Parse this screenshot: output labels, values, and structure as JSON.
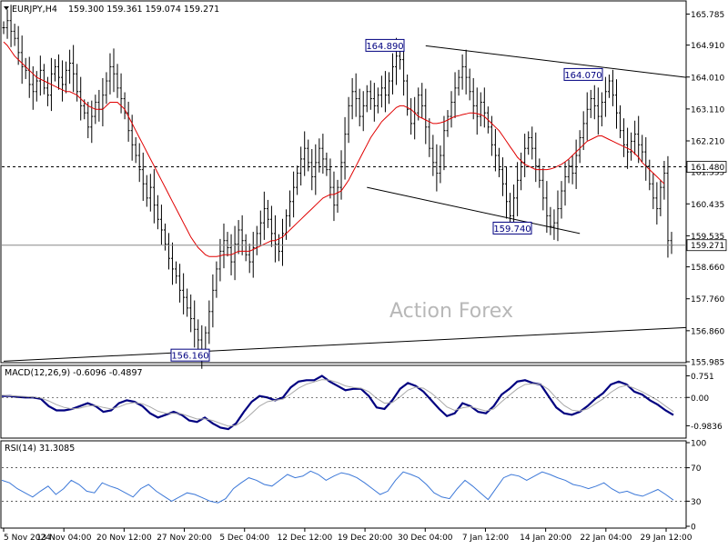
{
  "header": {
    "symbol": "EURJPY,H4",
    "ohlc": "159.300 159.361 159.074 159.271",
    "watermark": "Action Forex"
  },
  "chart_data": [
    {
      "type": "candlestick",
      "name": "EURJPY,H4",
      "x_ticks": [
        "5 Nov 2024",
        "13 Nov 04:00",
        "20 Nov 12:00",
        "27 Nov 20:00",
        "5 Dec 04:00",
        "12 Dec 12:00",
        "19 Dec 20:00",
        "30 Dec 04:00",
        "7 Jan 12:00",
        "14 Jan 20:00",
        "22 Jan 04:00",
        "29 Jan 12:00"
      ],
      "y_ticks": [
        165.785,
        164.91,
        164.01,
        163.11,
        162.21,
        161.335,
        160.435,
        159.535,
        158.66,
        157.76,
        156.86,
        155.985
      ],
      "ylim": [
        155.985,
        166.13
      ],
      "current_price": 159.271,
      "price_level_label": 161.48,
      "swing_labels": [
        {
          "text": "164.890",
          "value": 164.89
        },
        {
          "text": "164.070",
          "value": 164.07
        },
        {
          "text": "159.740",
          "value": 159.74
        },
        {
          "text": "156.160",
          "value": 156.16
        }
      ],
      "close_series": [
        165.4,
        165.6,
        165.3,
        165.1,
        164.7,
        164.3,
        164.2,
        163.8,
        163.6,
        163.9,
        164.2,
        163.7,
        163.5,
        164.1,
        164.3,
        164.0,
        163.8,
        164.2,
        164.4,
        164.1,
        163.6,
        163.2,
        163.0,
        162.6,
        162.9,
        163.3,
        163.1,
        163.5,
        163.9,
        164.3,
        164.1,
        163.7,
        163.4,
        163.0,
        162.5,
        162.1,
        161.8,
        161.4,
        161.0,
        160.6,
        160.9,
        160.4,
        160.0,
        159.7,
        159.3,
        158.9,
        158.6,
        158.4,
        158.0,
        157.8,
        157.5,
        157.2,
        156.9,
        156.6,
        156.2,
        156.8,
        157.4,
        158.0,
        158.6,
        159.1,
        159.4,
        159.2,
        158.8,
        159.3,
        159.7,
        159.4,
        159.0,
        158.8,
        159.2,
        159.6,
        159.9,
        160.3,
        160.0,
        159.6,
        159.3,
        159.1,
        159.6,
        160.1,
        160.5,
        160.9,
        161.3,
        161.7,
        162.0,
        161.6,
        161.2,
        161.6,
        162.0,
        161.7,
        161.4,
        160.9,
        160.4,
        160.9,
        161.6,
        162.4,
        163.2,
        163.6,
        163.4,
        162.9,
        163.2,
        163.6,
        163.4,
        163.2,
        163.5,
        163.7,
        163.5,
        163.9,
        164.3,
        164.6,
        164.5,
        163.9,
        163.1,
        162.7,
        163.0,
        163.5,
        163.2,
        162.6,
        162.0,
        161.6,
        161.3,
        161.8,
        162.5,
        162.9,
        163.3,
        163.7,
        164.0,
        164.3,
        164.0,
        163.6,
        163.2,
        162.9,
        163.3,
        163.0,
        162.6,
        162.1,
        161.8,
        161.4,
        161.0,
        160.5,
        160.1,
        160.6,
        161.1,
        161.6,
        162.0,
        162.3,
        162.0,
        161.5,
        161.1,
        160.6,
        160.1,
        159.8,
        159.9,
        160.3,
        160.8,
        161.2,
        161.5,
        161.3,
        161.8,
        162.3,
        162.7,
        163.1,
        163.4,
        163.2,
        162.9,
        163.3,
        163.6,
        163.9,
        163.5,
        163.0,
        162.5,
        162.1,
        161.9,
        162.2,
        162.4,
        162.1,
        161.9,
        161.5,
        161.0,
        160.6,
        160.3,
        160.9,
        161.3,
        159.4,
        159.27
      ],
      "ma_series": [
        165.0,
        164.9,
        164.75,
        164.6,
        164.5,
        164.4,
        164.3,
        164.2,
        164.1,
        164.0,
        163.95,
        163.9,
        163.85,
        163.8,
        163.75,
        163.7,
        163.65,
        163.6,
        163.6,
        163.55,
        163.5,
        163.4,
        163.3,
        163.2,
        163.15,
        163.1,
        163.1,
        163.1,
        163.2,
        163.3,
        163.3,
        163.3,
        163.2,
        163.1,
        162.9,
        162.7,
        162.5,
        162.3,
        162.1,
        161.9,
        161.7,
        161.5,
        161.3,
        161.1,
        160.9,
        160.7,
        160.5,
        160.3,
        160.1,
        159.9,
        159.7,
        159.5,
        159.35,
        159.2,
        159.1,
        159.0,
        158.95,
        158.95,
        158.95,
        158.97,
        159.0,
        159.0,
        159.0,
        159.05,
        159.1,
        159.1,
        159.1,
        159.1,
        159.15,
        159.2,
        159.25,
        159.3,
        159.35,
        159.4,
        159.4,
        159.45,
        159.5,
        159.6,
        159.7,
        159.8,
        159.9,
        160.0,
        160.1,
        160.2,
        160.3,
        160.4,
        160.5,
        160.6,
        160.65,
        160.7,
        160.7,
        160.75,
        160.8,
        160.95,
        161.1,
        161.3,
        161.5,
        161.7,
        161.9,
        162.1,
        162.3,
        162.45,
        162.6,
        162.75,
        162.85,
        162.95,
        163.05,
        163.15,
        163.2,
        163.2,
        163.15,
        163.1,
        163.0,
        162.9,
        162.85,
        162.8,
        162.75,
        162.7,
        162.7,
        162.72,
        162.75,
        162.8,
        162.85,
        162.9,
        162.92,
        162.95,
        162.97,
        163.0,
        163.0,
        162.98,
        162.95,
        162.9,
        162.8,
        162.7,
        162.6,
        162.5,
        162.35,
        162.2,
        162.05,
        161.9,
        161.75,
        161.65,
        161.55,
        161.5,
        161.45,
        161.4,
        161.4,
        161.4,
        161.4,
        161.42,
        161.45,
        161.5,
        161.55,
        161.62,
        161.7,
        161.8,
        161.9,
        162.0,
        162.1,
        162.2,
        162.25,
        162.3,
        162.35,
        162.35,
        162.3,
        162.25,
        162.2,
        162.15,
        162.1,
        162.05,
        162.0,
        161.95,
        161.85,
        161.75,
        161.6,
        161.5,
        161.4,
        161.3,
        161.2,
        161.1,
        161.0
      ],
      "trendlines": [
        {
          "from": [
            164.89,
            "30 Dec"
          ],
          "to": [
            164.0,
            "29 Jan"
          ]
        },
        {
          "from": [
            160.9,
            "24 Dec"
          ],
          "to": [
            159.6,
            "16 Jan"
          ]
        },
        {
          "from": [
            156.0,
            "5 Nov"
          ],
          "to": [
            156.95,
            "31 Jan"
          ]
        }
      ]
    },
    {
      "type": "line",
      "name": "MACD(12,26,9)",
      "legend": "MACD(12,26,9) -0.6096 -0.4897",
      "y_ticks": [
        0.751,
        0.0,
        -0.9836
      ],
      "ylim": [
        -1.35,
        1.05
      ],
      "series": [
        {
          "name": "MACD",
          "values": [
            0.05,
            0.05,
            0.02,
            0.0,
            0.0,
            -0.05,
            -0.3,
            -0.45,
            -0.45,
            -0.4,
            -0.3,
            -0.2,
            -0.3,
            -0.5,
            -0.45,
            -0.2,
            -0.1,
            -0.15,
            -0.3,
            -0.55,
            -0.7,
            -0.6,
            -0.5,
            -0.6,
            -0.8,
            -0.85,
            -0.7,
            -0.9,
            -1.05,
            -1.1,
            -0.9,
            -0.5,
            -0.15,
            0.05,
            0.0,
            -0.1,
            0.0,
            0.35,
            0.55,
            0.6,
            0.6,
            0.75,
            0.55,
            0.4,
            0.25,
            0.3,
            0.3,
            0.05,
            -0.35,
            -0.4,
            -0.1,
            0.3,
            0.5,
            0.4,
            0.2,
            -0.1,
            -0.4,
            -0.65,
            -0.55,
            -0.2,
            -0.3,
            -0.5,
            -0.55,
            -0.3,
            0.1,
            0.3,
            0.55,
            0.6,
            0.5,
            0.45,
            0.05,
            -0.35,
            -0.55,
            -0.6,
            -0.5,
            -0.3,
            -0.05,
            0.15,
            0.45,
            0.55,
            0.45,
            0.2,
            0.1,
            -0.1,
            -0.25,
            -0.45,
            -0.61
          ]
        },
        {
          "name": "Signal",
          "values": [
            0.08,
            0.06,
            0.05,
            0.03,
            0.01,
            -0.02,
            -0.12,
            -0.25,
            -0.35,
            -0.4,
            -0.37,
            -0.3,
            -0.28,
            -0.35,
            -0.4,
            -0.33,
            -0.22,
            -0.18,
            -0.22,
            -0.33,
            -0.48,
            -0.55,
            -0.55,
            -0.57,
            -0.66,
            -0.75,
            -0.74,
            -0.8,
            -0.9,
            -1.0,
            -0.97,
            -0.8,
            -0.55,
            -0.3,
            -0.15,
            -0.1,
            -0.06,
            0.12,
            0.32,
            0.46,
            0.54,
            0.62,
            0.6,
            0.52,
            0.4,
            0.35,
            0.32,
            0.2,
            -0.03,
            -0.2,
            -0.18,
            0.02,
            0.25,
            0.36,
            0.32,
            0.15,
            -0.08,
            -0.33,
            -0.45,
            -0.36,
            -0.32,
            -0.4,
            -0.47,
            -0.4,
            -0.15,
            0.08,
            0.3,
            0.45,
            0.48,
            0.46,
            0.28,
            -0.02,
            -0.28,
            -0.44,
            -0.48,
            -0.4,
            -0.22,
            -0.05,
            0.18,
            0.35,
            0.42,
            0.32,
            0.2,
            0.05,
            -0.1,
            -0.3,
            -0.49
          ]
        }
      ]
    },
    {
      "type": "line",
      "name": "RSI(14)",
      "legend": "RSI(14) 31.3085",
      "y_ticks": [
        100,
        70,
        30,
        0
      ],
      "ylim": [
        0,
        100
      ],
      "levels": [
        70,
        30
      ],
      "series": [
        {
          "name": "RSI",
          "values": [
            55,
            52,
            45,
            40,
            35,
            42,
            48,
            38,
            45,
            55,
            50,
            42,
            40,
            52,
            48,
            45,
            40,
            35,
            45,
            50,
            42,
            36,
            30,
            35,
            40,
            38,
            34,
            30,
            28,
            33,
            45,
            52,
            58,
            55,
            50,
            48,
            55,
            62,
            58,
            60,
            66,
            62,
            55,
            60,
            64,
            62,
            58,
            52,
            45,
            38,
            42,
            55,
            65,
            62,
            58,
            50,
            40,
            35,
            33,
            45,
            55,
            48,
            40,
            32,
            45,
            58,
            62,
            60,
            55,
            60,
            65,
            62,
            58,
            55,
            50,
            48,
            45,
            48,
            52,
            45,
            40,
            42,
            38,
            36,
            40,
            44,
            38,
            31.3
          ]
        }
      ]
    }
  ],
  "colors": {
    "price": "#000000",
    "ma": "#e00000",
    "macd": "#000080",
    "signal": "#a8a8a8",
    "rsi": "#3c78d8",
    "grid": "#000000",
    "watermark": "#b0b0b0"
  }
}
